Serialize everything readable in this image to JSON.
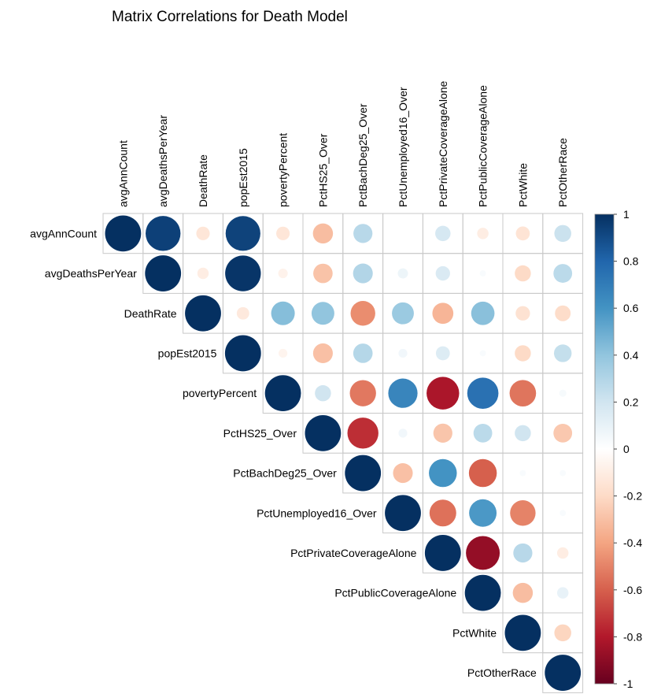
{
  "chart_data": {
    "type": "heatmap",
    "title": "Matrix Correlations for Death Model",
    "variables": [
      "avgAnnCount",
      "avgDeathsPerYear",
      "DeathRate",
      "popEst2015",
      "povertyPercent",
      "PctHS25_Over",
      "PctBachDeg25_Over",
      "PctUnemployed16_Over",
      "PctPrivateCoverageAlone",
      "PctPublicCoverageAlone",
      "PctWhite",
      "PctOtherRace"
    ],
    "layout": "upper-triangle",
    "glyph": "circle",
    "matrix": [
      [
        1,
        0.94,
        -0.14,
        0.93,
        -0.14,
        -0.31,
        0.28,
        0.0,
        0.18,
        -0.1,
        -0.15,
        0.22
      ],
      [
        0.94,
        1,
        -0.1,
        0.98,
        -0.07,
        -0.29,
        0.3,
        0.08,
        0.16,
        0.03,
        -0.2,
        0.27
      ],
      [
        -0.14,
        -0.1,
        1,
        -0.12,
        0.43,
        0.4,
        -0.47,
        0.37,
        -0.34,
        0.42,
        -0.16,
        -0.19
      ],
      [
        0.93,
        0.98,
        -0.12,
        1,
        -0.06,
        -0.3,
        0.29,
        0.06,
        0.15,
        0.03,
        -0.2,
        0.24
      ],
      [
        -0.14,
        -0.07,
        0.43,
        -0.06,
        1,
        0.2,
        -0.53,
        0.66,
        -0.82,
        0.75,
        -0.54,
        0.04
      ],
      [
        -0.31,
        -0.29,
        0.4,
        -0.3,
        0.2,
        1,
        -0.74,
        0.06,
        -0.28,
        0.27,
        0.2,
        -0.27
      ],
      [
        0.28,
        0.3,
        -0.47,
        0.29,
        -0.53,
        -0.74,
        1,
        -0.3,
        0.6,
        -0.6,
        0.03,
        0.03
      ],
      [
        0.0,
        0.08,
        0.37,
        0.06,
        0.66,
        0.06,
        -0.3,
        1,
        -0.55,
        0.58,
        -0.5,
        0.03
      ],
      [
        0.18,
        0.16,
        -0.34,
        0.15,
        -0.82,
        -0.28,
        0.6,
        -0.55,
        1,
        -0.88,
        0.28,
        -0.1
      ],
      [
        -0.1,
        0.03,
        0.42,
        0.03,
        0.75,
        0.27,
        -0.6,
        0.58,
        -0.88,
        1,
        -0.31,
        0.1
      ],
      [
        -0.15,
        -0.2,
        -0.16,
        -0.2,
        -0.54,
        0.2,
        0.03,
        -0.5,
        0.28,
        -0.31,
        1,
        -0.22
      ],
      [
        0.22,
        0.27,
        -0.19,
        0.24,
        0.04,
        -0.27,
        0.03,
        0.03,
        -0.1,
        0.1,
        -0.22,
        1
      ]
    ],
    "colorbar": {
      "range": [
        -1,
        1
      ],
      "ticks": [
        "1",
        "0.8",
        "0.6",
        "0.4",
        "0.2",
        "0",
        "-0.2",
        "-0.4",
        "-0.6",
        "-0.8",
        "-1"
      ],
      "tick_values": [
        1,
        0.8,
        0.6,
        0.4,
        0.2,
        0,
        -0.2,
        -0.4,
        -0.6,
        -0.8,
        -1
      ],
      "colors": [
        "#67001F",
        "#B2182B",
        "#D6604D",
        "#F4A582",
        "#FDDBC7",
        "#FFFFFF",
        "#D1E5F0",
        "#92C5DE",
        "#4393C3",
        "#2166AC",
        "#053061"
      ]
    },
    "legend": "right"
  }
}
